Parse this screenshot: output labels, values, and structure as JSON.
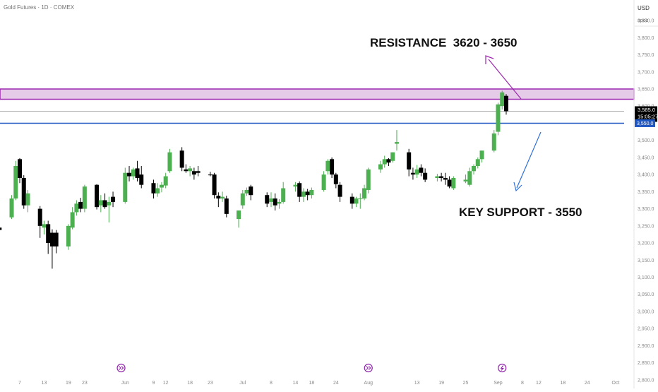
{
  "header": {
    "symbol_title": "Gold Futures · 1D · COMEX",
    "currency": "USD",
    "currency_sub": "apoz"
  },
  "annotations": {
    "resistance": "RESISTANCE  3620 - 3650",
    "support": "KEY SUPPORT - 3550"
  },
  "price_badges": {
    "current_price": "3,585.0",
    "countdown": "15:05:27",
    "support_price": "3,550.0"
  },
  "event_markers": [
    {
      "kind": "dividend",
      "icon": "double-chevron-icon",
      "date": "2025-06-01"
    },
    {
      "kind": "dividend",
      "icon": "double-chevron-icon",
      "date": "2025-08-01"
    },
    {
      "kind": "earnings",
      "icon": "lightning-icon",
      "date": "2025-09-03"
    }
  ],
  "colors": {
    "up": "#4caf50",
    "down": "#000000",
    "resistance_zone_fill": "#e6cbe9",
    "resistance_zone_border": "#9c27b0",
    "support_line": "#1e56c4",
    "resistance_arrow": "#9c27b0",
    "support_arrow": "#2f6fd8",
    "current_price_line": "#b0b0b0"
  },
  "chart_data": {
    "type": "candlestick",
    "title": "Gold Futures · 1D · COMEX",
    "x_axis": {
      "tick_labels": [
        "7",
        "13",
        "19",
        "23",
        "Jun",
        "9",
        "12",
        "18",
        "23",
        "Jul",
        "8",
        "14",
        "18",
        "24",
        "Aug",
        "13",
        "19",
        "25",
        "Sep",
        "8",
        "12",
        "18",
        "24",
        "Oct"
      ],
      "tick_dates": [
        "2025-05-07",
        "2025-05-13",
        "2025-05-19",
        "2025-05-23",
        "2025-06-02",
        "2025-06-09",
        "2025-06-12",
        "2025-06-18",
        "2025-06-23",
        "2025-07-01",
        "2025-07-08",
        "2025-07-14",
        "2025-07-18",
        "2025-07-24",
        "2025-08-01",
        "2025-08-13",
        "2025-08-19",
        "2025-08-25",
        "2025-09-02",
        "2025-09-08",
        "2025-09-12",
        "2025-09-18",
        "2025-09-24",
        "2025-10-01"
      ]
    },
    "y_axis": {
      "unit": "USD",
      "range": [
        2775,
        3910
      ],
      "tick_values": [
        2800,
        2850,
        2900,
        2950,
        3000,
        3050,
        3100,
        3150,
        3200,
        3250,
        3300,
        3350,
        3400,
        3450,
        3500,
        3550,
        3600,
        3650,
        3700,
        3750,
        3800,
        3850
      ],
      "tick_labels": [
        "2,800.0",
        "2,850.0",
        "2,900.0",
        "2,950.0",
        "3,000.0",
        "3,050.0",
        "3,100.0",
        "3,150.0",
        "3,200.0",
        "3,250.0",
        "3,300.0",
        "3,350.0",
        "3,400.0",
        "3,450.0",
        "3,500.0",
        "3,550.0",
        "3,600.0",
        "3,650.0",
        "3,700.0",
        "3,750.0",
        "3,800.0",
        "3,850.0"
      ]
    },
    "resistance_zone": [
      3620,
      3650
    ],
    "support_level": 3550,
    "current_price": 3585,
    "candles": [
      {
        "date": "2025-05-02",
        "o": 3245,
        "h": 3262,
        "l": 3232,
        "c": 3238
      },
      {
        "date": "2025-05-05",
        "o": 3275,
        "h": 3340,
        "l": 3270,
        "c": 3330
      },
      {
        "date": "2025-05-06",
        "o": 3330,
        "h": 3440,
        "l": 3325,
        "c": 3425
      },
      {
        "date": "2025-05-07",
        "o": 3445,
        "h": 3448,
        "l": 3375,
        "c": 3390
      },
      {
        "date": "2025-05-08",
        "o": 3390,
        "h": 3398,
        "l": 3300,
        "c": 3310
      },
      {
        "date": "2025-05-09",
        "o": 3310,
        "h": 3355,
        "l": 3290,
        "c": 3345
      },
      {
        "date": "2025-05-12",
        "o": 3300,
        "h": 3308,
        "l": 3215,
        "c": 3250
      },
      {
        "date": "2025-05-13",
        "o": 3245,
        "h": 3265,
        "l": 3225,
        "c": 3255
      },
      {
        "date": "2025-05-14",
        "o": 3255,
        "h": 3265,
        "l": 3168,
        "c": 3200
      },
      {
        "date": "2025-05-15",
        "o": 3230,
        "h": 3240,
        "l": 3125,
        "c": 3190
      },
      {
        "date": "2025-05-16",
        "o": 3230,
        "h": 3238,
        "l": 3170,
        "c": 3190
      },
      {
        "date": "2025-05-19",
        "o": 3190,
        "h": 3255,
        "l": 3180,
        "c": 3250
      },
      {
        "date": "2025-05-20",
        "o": 3245,
        "h": 3305,
        "l": 3240,
        "c": 3290
      },
      {
        "date": "2025-05-21",
        "o": 3290,
        "h": 3325,
        "l": 3280,
        "c": 3315
      },
      {
        "date": "2025-05-22",
        "o": 3320,
        "h": 3332,
        "l": 3290,
        "c": 3300
      },
      {
        "date": "2025-05-23",
        "o": 3300,
        "h": 3370,
        "l": 3290,
        "c": 3365
      },
      {
        "date": "2025-05-26",
        "o": 3370,
        "h": 3372,
        "l": 3298,
        "c": 3305
      },
      {
        "date": "2025-05-27",
        "o": 3310,
        "h": 3340,
        "l": 3290,
        "c": 3325
      },
      {
        "date": "2025-05-28",
        "o": 3325,
        "h": 3345,
        "l": 3300,
        "c": 3305
      },
      {
        "date": "2025-05-29",
        "o": 3310,
        "h": 3335,
        "l": 3260,
        "c": 3320
      },
      {
        "date": "2025-05-30",
        "o": 3335,
        "h": 3350,
        "l": 3305,
        "c": 3320
      },
      {
        "date": "2025-06-02",
        "o": 3320,
        "h": 3420,
        "l": 3315,
        "c": 3405
      },
      {
        "date": "2025-06-03",
        "o": 3405,
        "h": 3425,
        "l": 3380,
        "c": 3395
      },
      {
        "date": "2025-06-04",
        "o": 3395,
        "h": 3420,
        "l": 3385,
        "c": 3415
      },
      {
        "date": "2025-06-05",
        "o": 3418,
        "h": 3440,
        "l": 3380,
        "c": 3390
      },
      {
        "date": "2025-06-06",
        "o": 3400,
        "h": 3425,
        "l": 3360,
        "c": 3370
      },
      {
        "date": "2025-06-09",
        "o": 3375,
        "h": 3385,
        "l": 3330,
        "c": 3345
      },
      {
        "date": "2025-06-10",
        "o": 3345,
        "h": 3375,
        "l": 3335,
        "c": 3360
      },
      {
        "date": "2025-06-11",
        "o": 3362,
        "h": 3378,
        "l": 3348,
        "c": 3370
      },
      {
        "date": "2025-06-12",
        "o": 3368,
        "h": 3405,
        "l": 3360,
        "c": 3395
      },
      {
        "date": "2025-06-13",
        "o": 3410,
        "h": 3475,
        "l": 3405,
        "c": 3465
      },
      {
        "date": "2025-06-16",
        "o": 3470,
        "h": 3480,
        "l": 3410,
        "c": 3420
      },
      {
        "date": "2025-06-17",
        "o": 3415,
        "h": 3430,
        "l": 3405,
        "c": 3410
      },
      {
        "date": "2025-06-18",
        "o": 3410,
        "h": 3425,
        "l": 3395,
        "c": 3418
      },
      {
        "date": "2025-06-19",
        "o": 3410,
        "h": 3420,
        "l": 3385,
        "c": 3400
      },
      {
        "date": "2025-06-20",
        "o": 3410,
        "h": 3425,
        "l": 3395,
        "c": 3405
      },
      {
        "date": "2025-06-23",
        "o": 3400,
        "h": 3408,
        "l": 3395,
        "c": 3398
      },
      {
        "date": "2025-06-24",
        "o": 3400,
        "h": 3405,
        "l": 3330,
        "c": 3340
      },
      {
        "date": "2025-06-25",
        "o": 3338,
        "h": 3348,
        "l": 3305,
        "c": 3330
      },
      {
        "date": "2025-06-26",
        "o": 3330,
        "h": 3350,
        "l": 3320,
        "c": 3335
      },
      {
        "date": "2025-06-27",
        "o": 3330,
        "h": 3338,
        "l": 3275,
        "c": 3285
      },
      {
        "date": "2025-06-30",
        "o": 3270,
        "h": 3285,
        "l": 3245,
        "c": 3295
      },
      {
        "date": "2025-07-01",
        "o": 3310,
        "h": 3355,
        "l": 3300,
        "c": 3345
      },
      {
        "date": "2025-07-02",
        "o": 3345,
        "h": 3362,
        "l": 3338,
        "c": 3355
      },
      {
        "date": "2025-07-03",
        "o": 3365,
        "h": 3370,
        "l": 3325,
        "c": 3340
      },
      {
        "date": "2025-07-07",
        "o": 3340,
        "h": 3348,
        "l": 3305,
        "c": 3315
      },
      {
        "date": "2025-07-08",
        "o": 3320,
        "h": 3348,
        "l": 3305,
        "c": 3330
      },
      {
        "date": "2025-07-09",
        "o": 3330,
        "h": 3345,
        "l": 3295,
        "c": 3310
      },
      {
        "date": "2025-07-10",
        "o": 3315,
        "h": 3328,
        "l": 3300,
        "c": 3320
      },
      {
        "date": "2025-07-11",
        "o": 3320,
        "h": 3378,
        "l": 3315,
        "c": 3360
      },
      {
        "date": "2025-07-14",
        "o": 3365,
        "h": 3378,
        "l": 3350,
        "c": 3370
      },
      {
        "date": "2025-07-15",
        "o": 3375,
        "h": 3380,
        "l": 3320,
        "c": 3335
      },
      {
        "date": "2025-07-16",
        "o": 3335,
        "h": 3360,
        "l": 3320,
        "c": 3350
      },
      {
        "date": "2025-07-17",
        "o": 3350,
        "h": 3358,
        "l": 3325,
        "c": 3340
      },
      {
        "date": "2025-07-18",
        "o": 3340,
        "h": 3362,
        "l": 3330,
        "c": 3355
      },
      {
        "date": "2025-07-21",
        "o": 3355,
        "h": 3410,
        "l": 3350,
        "c": 3400
      },
      {
        "date": "2025-07-22",
        "o": 3410,
        "h": 3445,
        "l": 3400,
        "c": 3440
      },
      {
        "date": "2025-07-23",
        "o": 3445,
        "h": 3450,
        "l": 3390,
        "c": 3400
      },
      {
        "date": "2025-07-24",
        "o": 3400,
        "h": 3405,
        "l": 3360,
        "c": 3372
      },
      {
        "date": "2025-07-25",
        "o": 3370,
        "h": 3378,
        "l": 3320,
        "c": 3335
      },
      {
        "date": "2025-07-28",
        "o": 3335,
        "h": 3345,
        "l": 3300,
        "c": 3315
      },
      {
        "date": "2025-07-29",
        "o": 3315,
        "h": 3335,
        "l": 3305,
        "c": 3330
      },
      {
        "date": "2025-07-30",
        "o": 3330,
        "h": 3345,
        "l": 3300,
        "c": 3330
      },
      {
        "date": "2025-07-31",
        "o": 3330,
        "h": 3370,
        "l": 3325,
        "c": 3360
      },
      {
        "date": "2025-08-01",
        "o": 3355,
        "h": 3420,
        "l": 3345,
        "c": 3415
      },
      {
        "date": "2025-08-04",
        "o": 3415,
        "h": 3440,
        "l": 3405,
        "c": 3430
      },
      {
        "date": "2025-08-05",
        "o": 3430,
        "h": 3455,
        "l": 3420,
        "c": 3445
      },
      {
        "date": "2025-08-06",
        "o": 3445,
        "h": 3448,
        "l": 3425,
        "c": 3435
      },
      {
        "date": "2025-08-07",
        "o": 3440,
        "h": 3465,
        "l": 3435,
        "c": 3465
      },
      {
        "date": "2025-08-08",
        "o": 3490,
        "h": 3530,
        "l": 3470,
        "c": 3495
      },
      {
        "date": "2025-08-11",
        "o": 3465,
        "h": 3475,
        "l": 3395,
        "c": 3415
      },
      {
        "date": "2025-08-12",
        "o": 3405,
        "h": 3420,
        "l": 3385,
        "c": 3400
      },
      {
        "date": "2025-08-13",
        "o": 3400,
        "h": 3428,
        "l": 3390,
        "c": 3415
      },
      {
        "date": "2025-08-14",
        "o": 3420,
        "h": 3430,
        "l": 3395,
        "c": 3405
      },
      {
        "date": "2025-08-15",
        "o": 3405,
        "h": 3418,
        "l": 3378,
        "c": 3385
      },
      {
        "date": "2025-08-18",
        "o": 3390,
        "h": 3402,
        "l": 3380,
        "c": 3395
      },
      {
        "date": "2025-08-19",
        "o": 3395,
        "h": 3405,
        "l": 3380,
        "c": 3390
      },
      {
        "date": "2025-08-20",
        "o": 3390,
        "h": 3405,
        "l": 3370,
        "c": 3385
      },
      {
        "date": "2025-08-21",
        "o": 3385,
        "h": 3395,
        "l": 3360,
        "c": 3365
      },
      {
        "date": "2025-08-22",
        "o": 3360,
        "h": 3395,
        "l": 3355,
        "c": 3390
      },
      {
        "date": "2025-08-25",
        "o": 3380,
        "h": 3400,
        "l": 3375,
        "c": 3385
      },
      {
        "date": "2025-08-26",
        "o": 3370,
        "h": 3420,
        "l": 3365,
        "c": 3410
      },
      {
        "date": "2025-08-27",
        "o": 3410,
        "h": 3430,
        "l": 3400,
        "c": 3425
      },
      {
        "date": "2025-08-28",
        "o": 3425,
        "h": 3450,
        "l": 3418,
        "c": 3445
      },
      {
        "date": "2025-08-29",
        "o": 3445,
        "h": 3470,
        "l": 3435,
        "c": 3470
      },
      {
        "date": "2025-09-01",
        "o": 3470,
        "h": 3530,
        "l": 3465,
        "c": 3520
      },
      {
        "date": "2025-09-02",
        "o": 3525,
        "h": 3610,
        "l": 3515,
        "c": 3605
      },
      {
        "date": "2025-09-03",
        "o": 3600,
        "h": 3645,
        "l": 3590,
        "c": 3640
      },
      {
        "date": "2025-09-04",
        "o": 3630,
        "h": 3635,
        "l": 3575,
        "c": 3585
      }
    ]
  }
}
